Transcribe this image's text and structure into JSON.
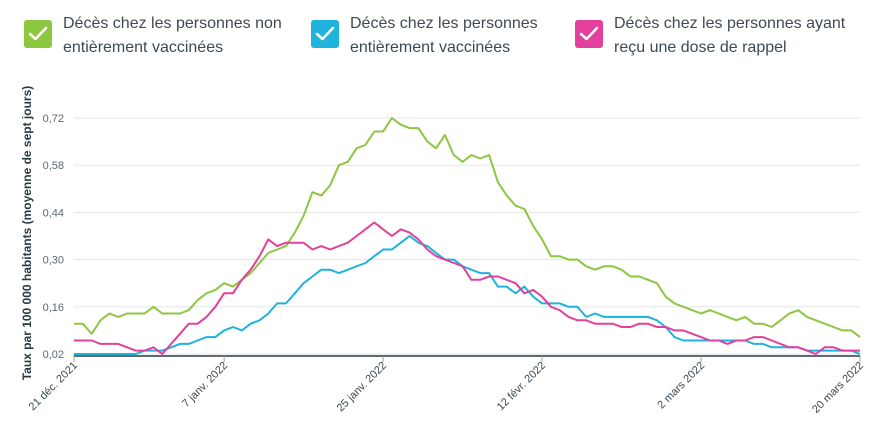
{
  "legend": {
    "items": [
      {
        "line1": "Décès chez les personnes non",
        "line2": "entièrement vaccinées",
        "color": "#8dc63f",
        "icon": "check-icon"
      },
      {
        "line1": "Décès chez les personnes",
        "line2": "entièrement vaccinées",
        "color": "#1eb3dc",
        "icon": "check-icon"
      },
      {
        "line1": "Décès chez les personnes ayant",
        "line2": "reçu une dose de rappel",
        "color": "#e2409c",
        "icon": "check-icon"
      }
    ]
  },
  "chart_data": {
    "type": "line",
    "ylabel": "Taux par 100 000 habitants (moyenne de sept jours)",
    "xlabel": "",
    "ylim": [
      0.0,
      0.76
    ],
    "yticks": [
      "0,02",
      "0,16",
      "0,30",
      "0,44",
      "0,58",
      "0,72"
    ],
    "ytick_values": [
      0.02,
      0.16,
      0.3,
      0.44,
      0.58,
      0.72
    ],
    "xticks": [
      "21 déc. 2021",
      "7 janv. 2022",
      "25 janv. 2022",
      "12 févr. 2022",
      "2 mars 2022",
      "20 mars 2022"
    ],
    "xtick_days": [
      0,
      17,
      35,
      53,
      71,
      89
    ],
    "grid": true,
    "series": [
      {
        "name": "Décès chez les personnes non entièrement vaccinées",
        "color": "#8dc63f",
        "values": [
          0.11,
          0.11,
          0.08,
          0.12,
          0.14,
          0.13,
          0.14,
          0.14,
          0.14,
          0.16,
          0.14,
          0.14,
          0.14,
          0.15,
          0.18,
          0.2,
          0.21,
          0.23,
          0.22,
          0.24,
          0.26,
          0.29,
          0.32,
          0.33,
          0.34,
          0.38,
          0.43,
          0.5,
          0.49,
          0.52,
          0.58,
          0.59,
          0.63,
          0.64,
          0.68,
          0.68,
          0.72,
          0.7,
          0.69,
          0.69,
          0.65,
          0.63,
          0.67,
          0.61,
          0.59,
          0.61,
          0.6,
          0.61,
          0.53,
          0.49,
          0.46,
          0.45,
          0.4,
          0.36,
          0.31,
          0.31,
          0.3,
          0.3,
          0.28,
          0.27,
          0.28,
          0.28,
          0.27,
          0.25,
          0.25,
          0.24,
          0.23,
          0.19,
          0.17,
          0.16,
          0.15,
          0.14,
          0.15,
          0.14,
          0.13,
          0.12,
          0.13,
          0.11,
          0.11,
          0.1,
          0.12,
          0.14,
          0.15,
          0.13,
          0.12,
          0.11,
          0.1,
          0.09,
          0.09,
          0.07
        ]
      },
      {
        "name": "Décès chez les personnes entièrement vaccinées",
        "color": "#1eb3dc",
        "values": [
          0.02,
          0.02,
          0.02,
          0.02,
          0.02,
          0.02,
          0.02,
          0.02,
          0.03,
          0.03,
          0.03,
          0.04,
          0.05,
          0.05,
          0.06,
          0.07,
          0.07,
          0.09,
          0.1,
          0.09,
          0.11,
          0.12,
          0.14,
          0.17,
          0.17,
          0.2,
          0.23,
          0.25,
          0.27,
          0.27,
          0.26,
          0.27,
          0.28,
          0.29,
          0.31,
          0.33,
          0.33,
          0.35,
          0.37,
          0.35,
          0.34,
          0.32,
          0.3,
          0.3,
          0.28,
          0.27,
          0.26,
          0.26,
          0.22,
          0.22,
          0.2,
          0.22,
          0.19,
          0.17,
          0.17,
          0.17,
          0.16,
          0.16,
          0.13,
          0.14,
          0.13,
          0.13,
          0.13,
          0.13,
          0.13,
          0.13,
          0.12,
          0.1,
          0.07,
          0.06,
          0.06,
          0.06,
          0.06,
          0.06,
          0.06,
          0.06,
          0.06,
          0.05,
          0.05,
          0.04,
          0.04,
          0.04,
          0.04,
          0.03,
          0.03,
          0.03,
          0.03,
          0.03,
          0.03,
          0.02
        ]
      },
      {
        "name": "Décès chez les personnes ayant reçu une dose de rappel",
        "color": "#e2409c",
        "values": [
          0.06,
          0.06,
          0.06,
          0.05,
          0.05,
          0.05,
          0.04,
          0.03,
          0.03,
          0.04,
          0.02,
          0.05,
          0.08,
          0.11,
          0.11,
          0.13,
          0.16,
          0.2,
          0.2,
          0.24,
          0.27,
          0.31,
          0.36,
          0.34,
          0.35,
          0.35,
          0.35,
          0.33,
          0.34,
          0.33,
          0.34,
          0.35,
          0.37,
          0.39,
          0.41,
          0.39,
          0.37,
          0.39,
          0.38,
          0.36,
          0.33,
          0.31,
          0.3,
          0.29,
          0.28,
          0.24,
          0.24,
          0.25,
          0.25,
          0.24,
          0.23,
          0.2,
          0.21,
          0.19,
          0.16,
          0.15,
          0.13,
          0.12,
          0.12,
          0.11,
          0.11,
          0.11,
          0.1,
          0.1,
          0.11,
          0.11,
          0.1,
          0.1,
          0.09,
          0.09,
          0.08,
          0.07,
          0.06,
          0.06,
          0.05,
          0.06,
          0.06,
          0.07,
          0.07,
          0.06,
          0.05,
          0.04,
          0.04,
          0.03,
          0.02,
          0.04,
          0.04,
          0.03,
          0.03,
          0.03
        ]
      }
    ]
  }
}
